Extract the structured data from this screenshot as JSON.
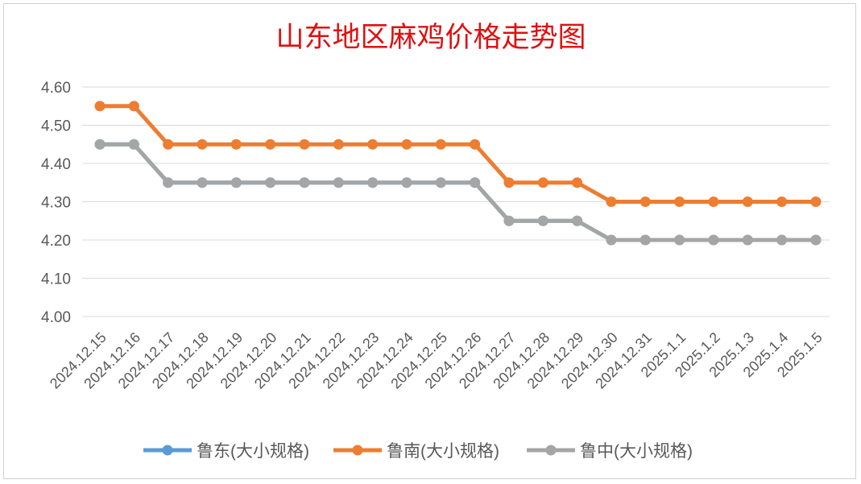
{
  "chart_data": {
    "type": "line",
    "title": "山东地区麻鸡价格走势图",
    "xlabel": "",
    "ylabel": "",
    "categories": [
      "2024.12.15",
      "2024.12.16",
      "2024.12.17",
      "2024.12.18",
      "2024.12.19",
      "2024.12.20",
      "2024.12.21",
      "2024.12.22",
      "2024.12.23",
      "2024.12.24",
      "2024.12.25",
      "2024.12.26",
      "2024.12.27",
      "2024.12.28",
      "2024.12.29",
      "2024.12.30",
      "2024.12.31",
      "2025.1.1",
      "2025.1.2",
      "2025.1.3",
      "2025.1.4",
      "2025.1.5"
    ],
    "ylim": [
      4.0,
      4.6
    ],
    "yticks": [
      "4.00",
      "4.10",
      "4.20",
      "4.30",
      "4.40",
      "4.50",
      "4.60"
    ],
    "grid": true,
    "legend_position": "bottom",
    "series": [
      {
        "name": "鲁东(大小规格)",
        "color": "#5B9BD5",
        "values": [
          4.45,
          4.45,
          4.35,
          4.35,
          4.35,
          4.35,
          4.35,
          4.35,
          4.35,
          4.35,
          4.35,
          4.35,
          4.25,
          4.25,
          4.25,
          4.2,
          4.2,
          4.2,
          4.2,
          4.2,
          4.2,
          4.2
        ]
      },
      {
        "name": "鲁南(大小规格)",
        "color": "#ED7D31",
        "values": [
          4.55,
          4.55,
          4.45,
          4.45,
          4.45,
          4.45,
          4.45,
          4.45,
          4.45,
          4.45,
          4.45,
          4.45,
          4.35,
          4.35,
          4.35,
          4.3,
          4.3,
          4.3,
          4.3,
          4.3,
          4.3,
          4.3
        ]
      },
      {
        "name": "鲁中(大小规格)",
        "color": "#A5A5A5",
        "values": [
          4.45,
          4.45,
          4.35,
          4.35,
          4.35,
          4.35,
          4.35,
          4.35,
          4.35,
          4.35,
          4.35,
          4.35,
          4.25,
          4.25,
          4.25,
          4.2,
          4.2,
          4.2,
          4.2,
          4.2,
          4.2,
          4.2
        ]
      }
    ],
    "title_color": "#E01010",
    "axis_text_color": "#595959",
    "grid_color": "#D9D9D9"
  }
}
